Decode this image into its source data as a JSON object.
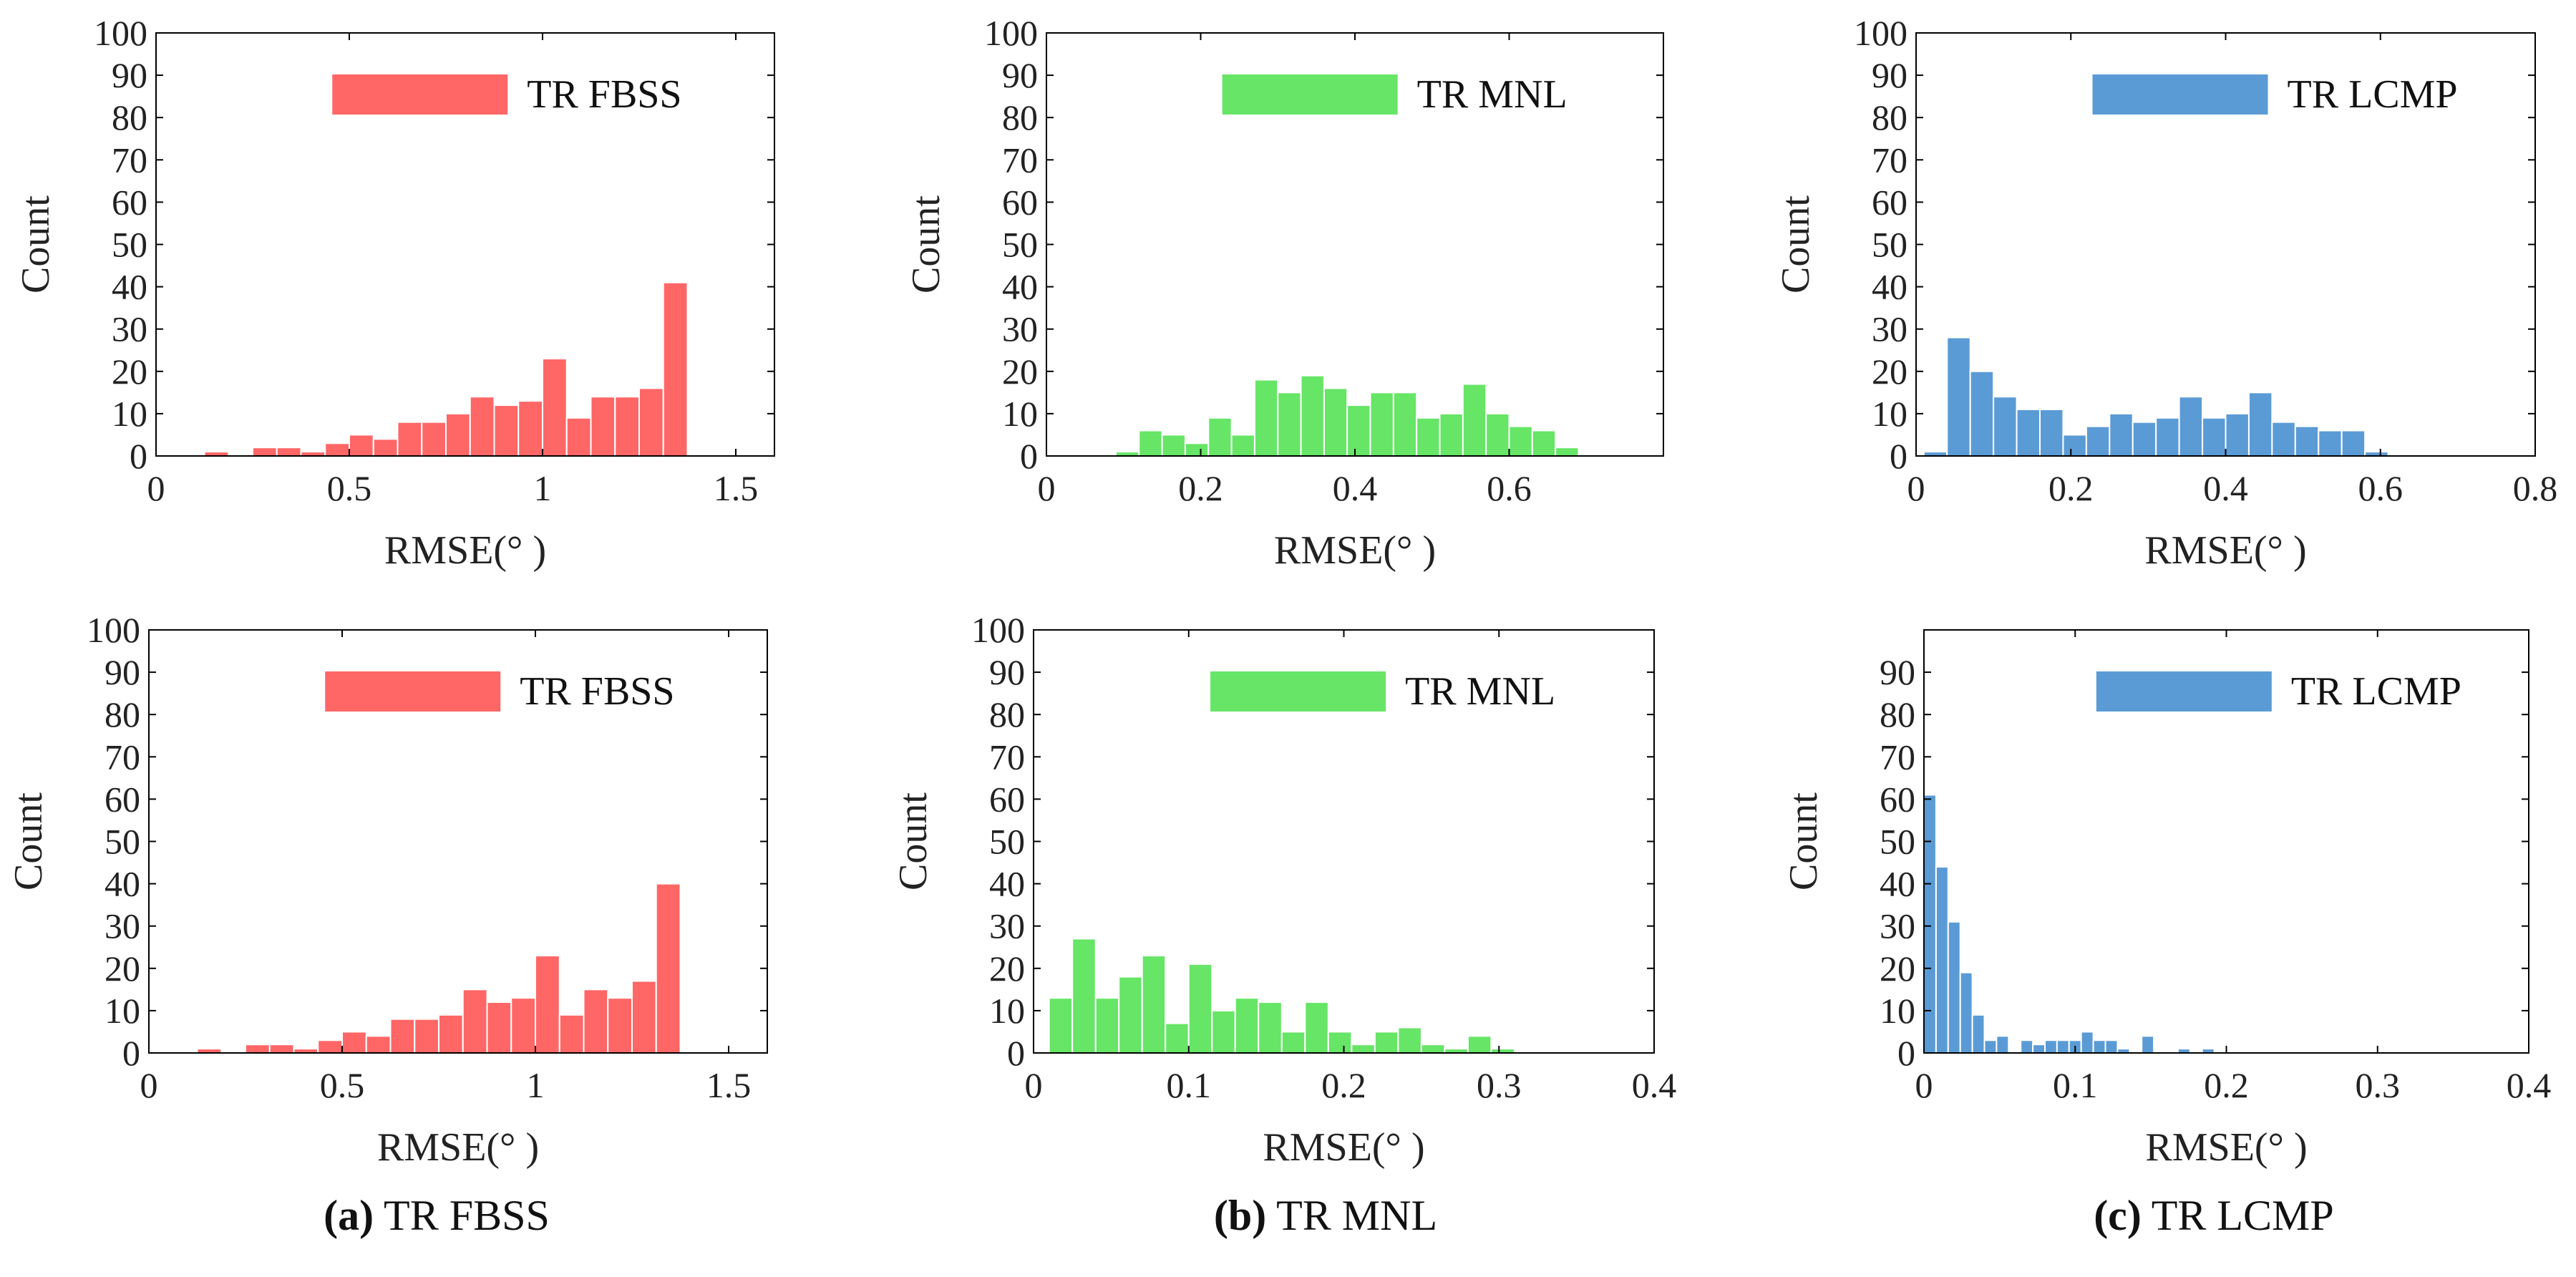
{
  "chart_data": [
    {
      "type": "bar",
      "id": "top-fbss",
      "title": "",
      "xlabel": "RMSE(° )",
      "ylabel": "Count",
      "legend": "TR FBSS",
      "color": "#ff6666",
      "xlim": [
        0,
        1.6
      ],
      "ylim": [
        0,
        100
      ],
      "xticks": [
        0,
        0.5,
        1,
        1.5
      ],
      "xtick_labels": [
        "0",
        "0.5",
        "1",
        "1.5"
      ],
      "yticks": [
        0,
        10,
        20,
        30,
        40,
        50,
        60,
        70,
        80,
        90,
        100
      ],
      "ytick_labels": [
        "0",
        "10",
        "20",
        "30",
        "40",
        "50",
        "60",
        "70",
        "80",
        "90",
        "100"
      ],
      "bin_width": 0.0625,
      "bin_starts": [
        0.125,
        0.1875,
        0.25,
        0.3125,
        0.375,
        0.4375,
        0.5,
        0.5625,
        0.625,
        0.6875,
        0.75,
        0.8125,
        0.875,
        0.9375,
        1.0,
        1.0625,
        1.125,
        1.1875,
        1.25,
        1.3125,
        1.375,
        1.4375
      ],
      "values": [
        1,
        0,
        2,
        2,
        1,
        3,
        5,
        4,
        8,
        8,
        10,
        14,
        12,
        13,
        23,
        9,
        14,
        14,
        16,
        41,
        0,
        0
      ]
    },
    {
      "type": "bar",
      "id": "top-mnl",
      "title": "",
      "xlabel": "RMSE(° )",
      "ylabel": "Count",
      "legend": "TR MNL",
      "color": "#66e566",
      "xlim": [
        0,
        0.8
      ],
      "ylim": [
        0,
        100
      ],
      "xticks": [
        0,
        0.2,
        0.4,
        0.6
      ],
      "xtick_labels": [
        "0",
        "0.2",
        "0.4",
        "0.6"
      ],
      "yticks": [
        0,
        10,
        20,
        30,
        40,
        50,
        60,
        70,
        80,
        90,
        100
      ],
      "ytick_labels": [
        "0",
        "10",
        "20",
        "30",
        "40",
        "50",
        "60",
        "70",
        "80",
        "90",
        "100"
      ],
      "bin_width": 0.03,
      "bin_starts": [
        0.09,
        0.12,
        0.15,
        0.18,
        0.21,
        0.24,
        0.27,
        0.3,
        0.33,
        0.36,
        0.39,
        0.42,
        0.45,
        0.48,
        0.51,
        0.54,
        0.57,
        0.6,
        0.63,
        0.66
      ],
      "values": [
        1,
        6,
        5,
        3,
        9,
        5,
        18,
        15,
        19,
        16,
        12,
        15,
        15,
        9,
        10,
        17,
        10,
        7,
        6,
        2
      ]
    },
    {
      "type": "bar",
      "id": "top-lcmp",
      "title": "",
      "xlabel": "RMSE(° )",
      "ylabel": "Count",
      "legend": "TR LCMP",
      "color": "#5b9bd5",
      "xlim": [
        0,
        0.8
      ],
      "ylim": [
        0,
        100
      ],
      "xticks": [
        0,
        0.2,
        0.4,
        0.6,
        0.8
      ],
      "xtick_labels": [
        "0",
        "0.2",
        "0.4",
        "0.6",
        "0.8"
      ],
      "yticks": [
        0,
        10,
        20,
        30,
        40,
        50,
        60,
        70,
        80,
        90,
        100
      ],
      "ytick_labels": [
        "0",
        "10",
        "20",
        "30",
        "40",
        "50",
        "60",
        "70",
        "80",
        "90",
        "100"
      ],
      "bin_width": 0.03,
      "bin_starts": [
        0.01,
        0.04,
        0.07,
        0.1,
        0.13,
        0.16,
        0.19,
        0.22,
        0.25,
        0.28,
        0.31,
        0.34,
        0.37,
        0.4,
        0.43,
        0.46,
        0.49,
        0.52,
        0.55,
        0.58,
        0.61
      ],
      "values": [
        1,
        28,
        20,
        14,
        11,
        11,
        5,
        7,
        10,
        8,
        9,
        14,
        9,
        10,
        15,
        8,
        7,
        6,
        6,
        1,
        0
      ]
    },
    {
      "type": "bar",
      "id": "bottom-fbss",
      "title": "",
      "xlabel": "RMSE(° )",
      "ylabel": "Count",
      "legend": "TR FBSS",
      "color": "#ff6666",
      "xlim": [
        0,
        1.6
      ],
      "ylim": [
        0,
        100
      ],
      "xticks": [
        0,
        0.5,
        1,
        1.5
      ],
      "xtick_labels": [
        "0",
        "0.5",
        "1",
        "1.5"
      ],
      "yticks": [
        0,
        10,
        20,
        30,
        40,
        50,
        60,
        70,
        80,
        90,
        100
      ],
      "ytick_labels": [
        "0",
        "10",
        "20",
        "30",
        "40",
        "50",
        "60",
        "70",
        "80",
        "90",
        "100"
      ],
      "bin_width": 0.0625,
      "bin_starts": [
        0.125,
        0.1875,
        0.25,
        0.3125,
        0.375,
        0.4375,
        0.5,
        0.5625,
        0.625,
        0.6875,
        0.75,
        0.8125,
        0.875,
        0.9375,
        1.0,
        1.0625,
        1.125,
        1.1875,
        1.25,
        1.3125,
        1.375,
        1.4375
      ],
      "values": [
        1,
        0,
        2,
        2,
        1,
        3,
        5,
        4,
        8,
        8,
        9,
        15,
        12,
        13,
        23,
        9,
        15,
        13,
        17,
        40,
        0,
        0
      ]
    },
    {
      "type": "bar",
      "id": "bottom-mnl",
      "title": "",
      "xlabel": "RMSE(° )",
      "ylabel": "Count",
      "legend": "TR MNL",
      "color": "#66e566",
      "xlim": [
        0,
        0.4
      ],
      "ylim": [
        0,
        100
      ],
      "xticks": [
        0,
        0.1,
        0.2,
        0.3,
        0.4
      ],
      "xtick_labels": [
        "0",
        "0.1",
        "0.2",
        "0.3",
        "0.4"
      ],
      "yticks": [
        0,
        10,
        20,
        30,
        40,
        50,
        60,
        70,
        80,
        90,
        100
      ],
      "ytick_labels": [
        "0",
        "10",
        "20",
        "30",
        "40",
        "50",
        "60",
        "70",
        "80",
        "90",
        "100"
      ],
      "bin_width": 0.015,
      "bin_starts": [
        0.01,
        0.025,
        0.04,
        0.055,
        0.07,
        0.085,
        0.1,
        0.115,
        0.13,
        0.145,
        0.16,
        0.175,
        0.19,
        0.205,
        0.22,
        0.235,
        0.25,
        0.265,
        0.28,
        0.295,
        0.31
      ],
      "values": [
        13,
        27,
        13,
        18,
        23,
        7,
        21,
        10,
        13,
        12,
        5,
        12,
        5,
        2,
        5,
        6,
        2,
        1,
        4,
        1,
        0
      ]
    },
    {
      "type": "bar",
      "id": "bottom-lcmp",
      "title": "",
      "xlabel": "RMSE(° )",
      "ylabel": "Count",
      "legend": "TR LCMP",
      "color": "#5b9bd5",
      "xlim": [
        0,
        0.4
      ],
      "ylim": [
        0,
        100
      ],
      "xticks": [
        0,
        0.1,
        0.2,
        0.3,
        0.4
      ],
      "xtick_labels": [
        "0",
        "0.1",
        "0.2",
        "0.3",
        "0.4"
      ],
      "yticks": [
        0,
        10,
        20,
        30,
        40,
        50,
        60,
        70,
        80,
        90
      ],
      "ytick_labels": [
        "0",
        "10",
        "20",
        "30",
        "40",
        "50",
        "60",
        "70",
        "80",
        "90"
      ],
      "bin_width": 0.008,
      "bin_starts": [
        0.0,
        0.008,
        0.016,
        0.024,
        0.032,
        0.04,
        0.048,
        0.056,
        0.064,
        0.072,
        0.08,
        0.088,
        0.096,
        0.104,
        0.112,
        0.12,
        0.128,
        0.136,
        0.144,
        0.152,
        0.16,
        0.168,
        0.176,
        0.184,
        0.192,
        0.2
      ],
      "values": [
        61,
        44,
        31,
        19,
        9,
        3,
        4,
        0,
        3,
        2,
        3,
        3,
        3,
        5,
        3,
        3,
        1,
        0,
        4,
        0,
        0,
        1,
        0,
        1,
        0,
        0
      ]
    }
  ],
  "captions": [
    {
      "letter": "(a)",
      "text": " TR FBSS"
    },
    {
      "letter": "(b)",
      "text": " TR MNL"
    },
    {
      "letter": "(c)",
      "text": " TR LCMP"
    }
  ]
}
